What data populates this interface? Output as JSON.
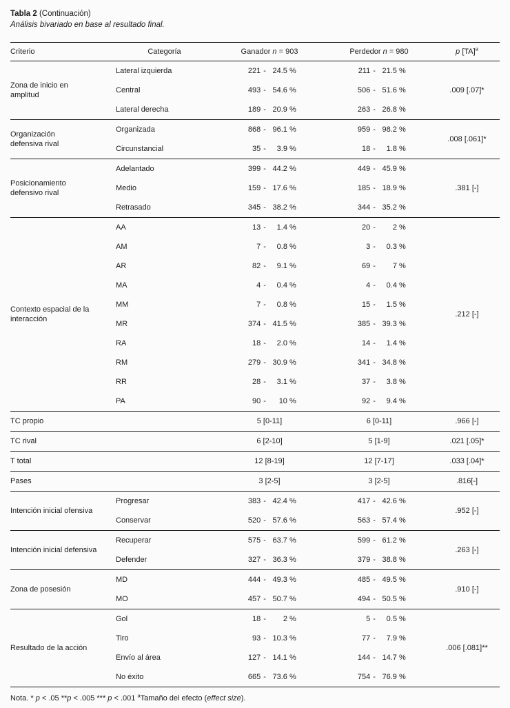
{
  "title": {
    "bold": "Tabla 2",
    "rest": " (Continuación)"
  },
  "subtitle": "Análisis bivariado en base al resultado final.",
  "symbols": {
    "dash": "-",
    "percent": "%"
  },
  "header": {
    "criterio": "Criterio",
    "categoria": "Categoría",
    "ganador": {
      "pre": "Ganador ",
      "n": "n",
      "post": " = 903"
    },
    "perdedor": {
      "pre": "Perdedor ",
      "n": "n",
      "post": " = 980"
    },
    "p": {
      "sym": "p",
      "rest": " [TA]",
      "sup": "a"
    }
  },
  "sections": [
    {
      "criterio_lines": [
        "Zona de inicio en",
        "amplitud"
      ],
      "p": ".009 [.07]*",
      "rows": [
        {
          "categoria": "Lateral izquierda",
          "g_n": "221",
          "g_pct": "24.5",
          "p_n": "211",
          "p_pct": "21.5"
        },
        {
          "categoria": "Central",
          "g_n": "493",
          "g_pct": "54.6",
          "p_n": "506",
          "p_pct": "51.6"
        },
        {
          "categoria": "Lateral derecha",
          "g_n": "189",
          "g_pct": "20.9",
          "p_n": "263",
          "p_pct": "26.8"
        }
      ]
    },
    {
      "criterio_lines": [
        "Organización",
        "defensiva rival"
      ],
      "p": ".008 [.061]*",
      "rows": [
        {
          "categoria": "Organizada",
          "g_n": "868",
          "g_pct": "96.1",
          "p_n": "959",
          "p_pct": "98.2"
        },
        {
          "categoria": "Circunstancial",
          "g_n": "35",
          "g_pct": "3.9",
          "p_n": "18",
          "p_pct": "1.8"
        }
      ]
    },
    {
      "criterio_lines": [
        "Posicionamiento",
        "defensivo rival"
      ],
      "p": ".381 [-]",
      "rows": [
        {
          "categoria": "Adelantado",
          "g_n": "399",
          "g_pct": "44.2",
          "p_n": "449",
          "p_pct": "45.9"
        },
        {
          "categoria": "Medio",
          "g_n": "159",
          "g_pct": "17.6",
          "p_n": "185",
          "p_pct": "18.9"
        },
        {
          "categoria": "Retrasado",
          "g_n": "345",
          "g_pct": "38.2",
          "p_n": "344",
          "p_pct": "35.2"
        }
      ]
    },
    {
      "criterio_lines": [
        "Contexto espacial de la",
        "interacción"
      ],
      "p": ".212 [-]",
      "rows": [
        {
          "categoria": "AA",
          "g_n": "13",
          "g_pct": "1.4",
          "p_n": "20",
          "p_pct": "2"
        },
        {
          "categoria": "AM",
          "g_n": "7",
          "g_pct": "0.8",
          "p_n": "3",
          "p_pct": "0.3"
        },
        {
          "categoria": "AR",
          "g_n": "82",
          "g_pct": "9.1",
          "p_n": "69",
          "p_pct": "7"
        },
        {
          "categoria": "MA",
          "g_n": "4",
          "g_pct": "0.4",
          "p_n": "4",
          "p_pct": "0.4"
        },
        {
          "categoria": "MM",
          "g_n": "7",
          "g_pct": "0.8",
          "p_n": "15",
          "p_pct": "1.5"
        },
        {
          "categoria": "MR",
          "g_n": "374",
          "g_pct": "41.5",
          "p_n": "385",
          "p_pct": "39.3"
        },
        {
          "categoria": "RA",
          "g_n": "18",
          "g_pct": "2.0",
          "p_n": "14",
          "p_pct": "1.4"
        },
        {
          "categoria": "RM",
          "g_n": "279",
          "g_pct": "30.9",
          "p_n": "341",
          "p_pct": "34.8"
        },
        {
          "categoria": "RR",
          "g_n": "28",
          "g_pct": "3.1",
          "p_n": "37",
          "p_pct": "3.8"
        },
        {
          "categoria": "PA",
          "g_n": "90",
          "g_pct": "10",
          "p_n": "92",
          "p_pct": "9.4"
        }
      ]
    },
    {
      "criterio_lines": [
        "TC propio"
      ],
      "p": ".966 [-]",
      "rows": [
        {
          "categoria": "",
          "g_text": "5 [0-11]",
          "p_text": "6 [0-11]"
        }
      ]
    },
    {
      "criterio_lines": [
        "TC rival"
      ],
      "p": ".021 [.05]*",
      "rows": [
        {
          "categoria": "",
          "g_text": "6 [2-10]",
          "p_text": "5 [1-9]"
        }
      ]
    },
    {
      "criterio_lines": [
        "T total"
      ],
      "p": ".033 [.04]*",
      "rows": [
        {
          "categoria": "",
          "g_text": "12 [8-19]",
          "p_text": "12 [7-17]"
        }
      ]
    },
    {
      "criterio_lines": [
        "Pases"
      ],
      "p": ".816[-]",
      "rows": [
        {
          "categoria": "",
          "g_text": "3 [2-5]",
          "p_text": "3 [2-5]"
        }
      ]
    },
    {
      "criterio_lines": [
        "Intención inicial ofensiva"
      ],
      "p": ".952 [-]",
      "rows": [
        {
          "categoria": "Progresar",
          "g_n": "383",
          "g_pct": "42.4",
          "p_n": "417",
          "p_pct": "42.6"
        },
        {
          "categoria": "Conservar",
          "g_n": "520",
          "g_pct": "57.6",
          "p_n": "563",
          "p_pct": "57.4"
        }
      ]
    },
    {
      "criterio_lines": [
        "Intención inicial defensiva"
      ],
      "p": ".263 [-]",
      "rows": [
        {
          "categoria": "Recuperar",
          "g_n": "575",
          "g_pct": "63.7",
          "p_n": "599",
          "p_pct": "61.2"
        },
        {
          "categoria": "Defender",
          "g_n": "327",
          "g_pct": "36.3",
          "p_n": "379",
          "p_pct": "38.8"
        }
      ]
    },
    {
      "criterio_lines": [
        "Zona de posesión"
      ],
      "p": ".910 [-]",
      "rows": [
        {
          "categoria": "MD",
          "g_n": "444",
          "g_pct": "49.3",
          "p_n": "485",
          "p_pct": "49.5"
        },
        {
          "categoria": "MO",
          "g_n": "457",
          "g_pct": "50.7",
          "p_n": "494",
          "p_pct": "50.5"
        }
      ]
    },
    {
      "criterio_lines": [
        "Resultado de la acción"
      ],
      "p": ".006 [.081]**",
      "rows": [
        {
          "categoria": "Gol",
          "g_n": "18",
          "g_pct": "2",
          "p_n": "5",
          "p_pct": "0.5"
        },
        {
          "categoria": "Tiro",
          "g_n": "93",
          "g_pct": "10.3",
          "p_n": "77",
          "p_pct": "7.9"
        },
        {
          "categoria": "Envío al área",
          "g_n": "127",
          "g_pct": "14.1",
          "p_n": "144",
          "p_pct": "14.7"
        },
        {
          "categoria": "No éxito",
          "g_n": "665",
          "g_pct": "73.6",
          "p_n": "754",
          "p_pct": "76.9"
        }
      ]
    }
  ],
  "footnote": {
    "t1": "Nota. * ",
    "p1": "p",
    "t2": " < .05 **",
    "p2": "p",
    "t3": " < .005 *** ",
    "p3": "p",
    "t4": " < .001 ",
    "sup": "a",
    "t5": "Tamaño del efecto (",
    "t6": "effect size",
    "t7": ")."
  }
}
